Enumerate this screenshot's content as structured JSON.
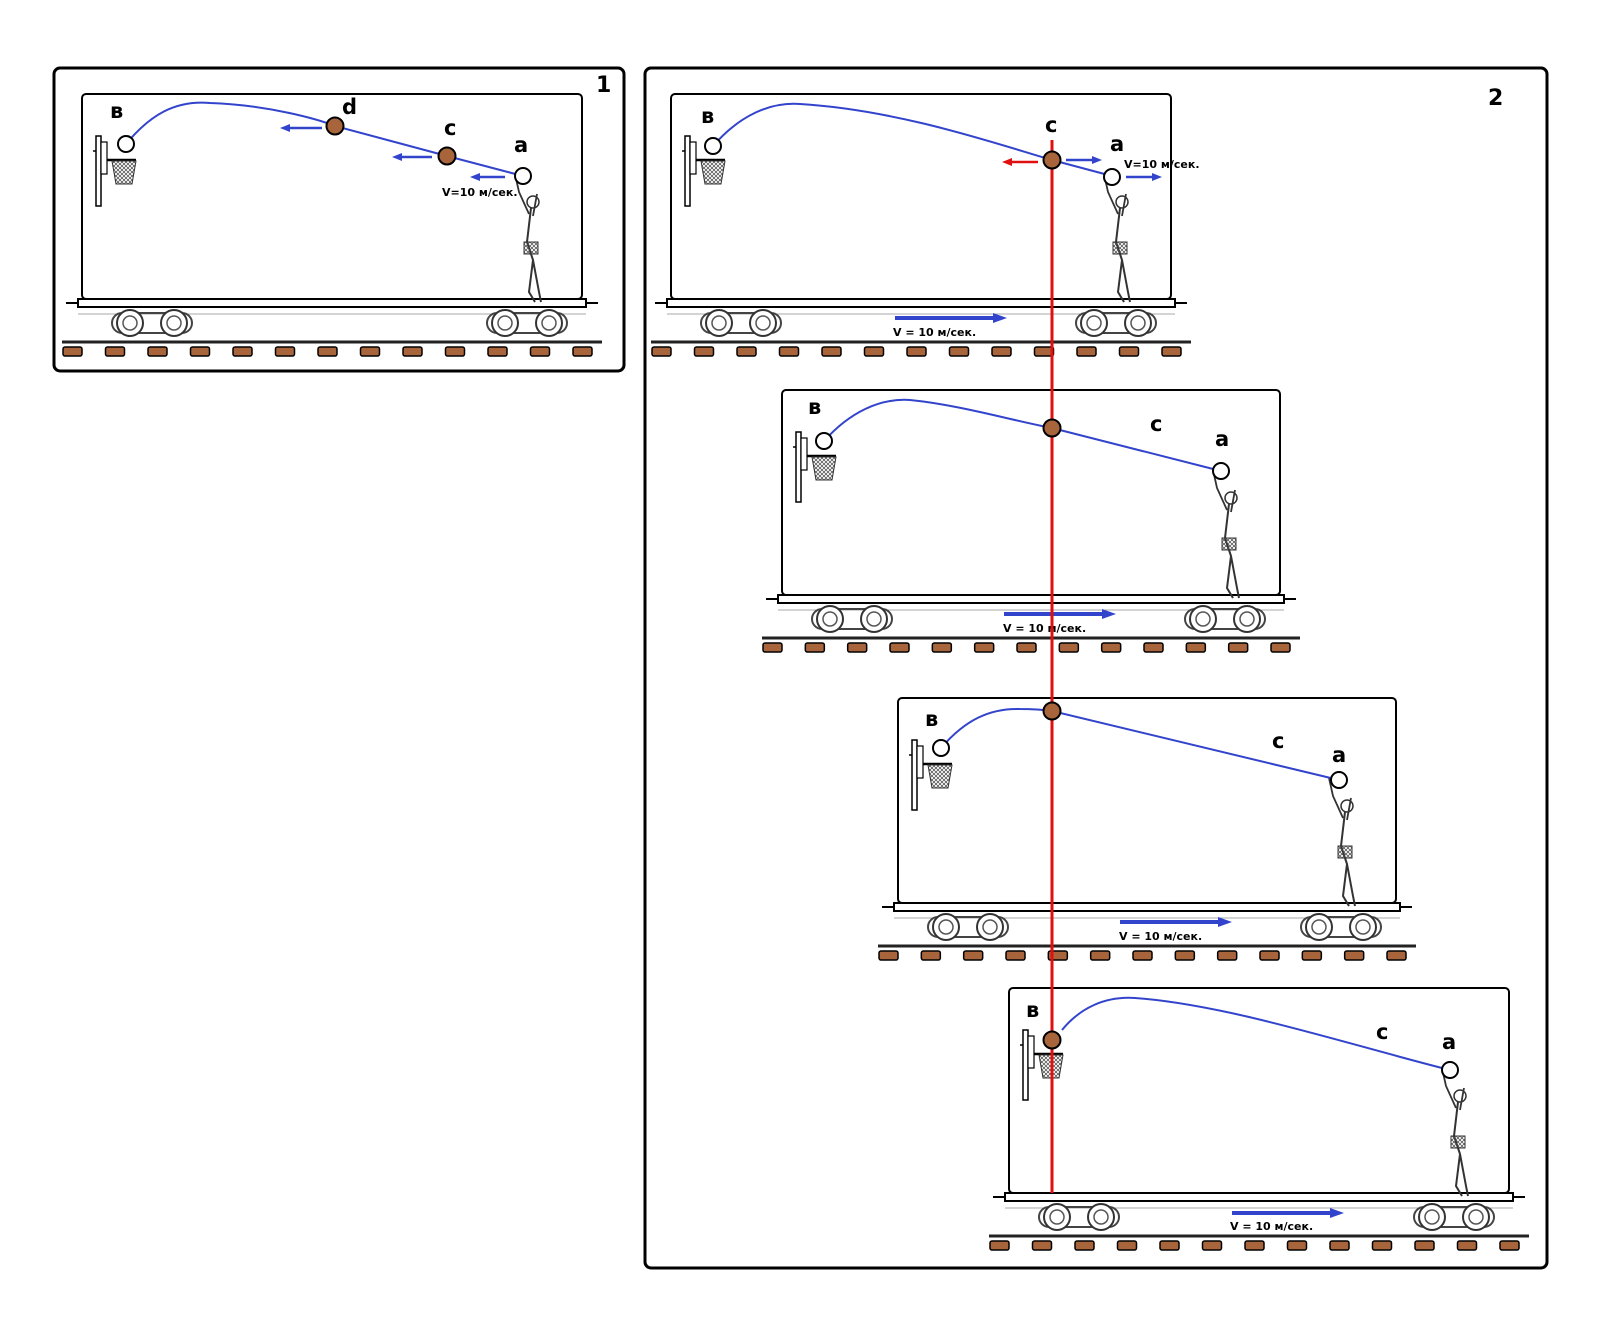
{
  "panel1": {
    "number": "1",
    "labels": {
      "b": "в",
      "a": "a",
      "c": "c",
      "d": "d"
    },
    "speed_label": "V=10 м/сек."
  },
  "panel2": {
    "number": "2",
    "frames": [
      {
        "labels": {
          "b": "в",
          "a": "a",
          "c": "c"
        },
        "speed_label": "V = 10 м/сек.",
        "ball_speed_label": "V=10 м/сек."
      },
      {
        "labels": {
          "b": "в",
          "a": "a",
          "c": "c"
        },
        "speed_label": "V = 10 м/сек."
      },
      {
        "labels": {
          "b": "в",
          "a": "a",
          "c": "c"
        },
        "speed_label": "V = 10 м/сек."
      },
      {
        "labels": {
          "b": "в",
          "a": "a",
          "c": "c"
        },
        "speed_label": "V = 10 м/сек."
      }
    ]
  },
  "colors": {
    "frame": "#000000",
    "trajectory": "#3344cc",
    "arrow": "#3344cc",
    "reference_line": "#e01010",
    "arrow_red": "#e01010",
    "ball_moving": "#a8653c",
    "ball_open": "#ffffff",
    "sleeper": "#a8653c"
  }
}
